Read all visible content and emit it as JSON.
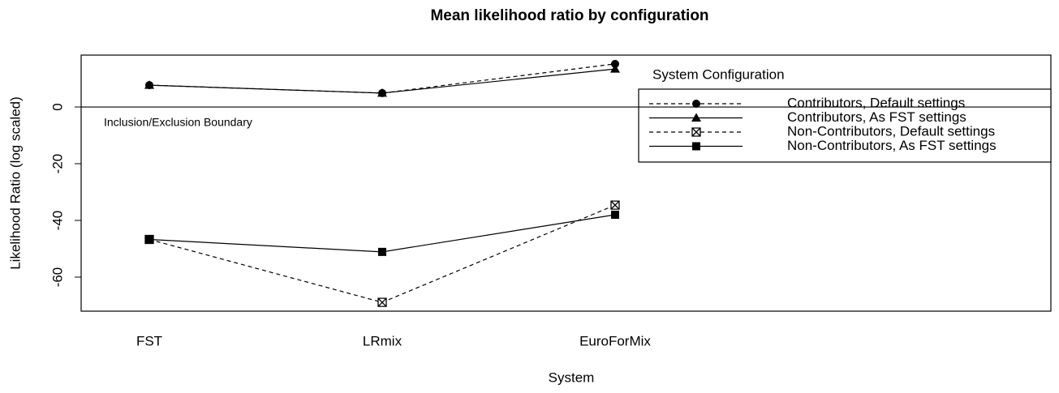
{
  "chart_data": {
    "type": "line",
    "title": "Mean likelihood ratio by configuration",
    "x_label": "System",
    "y_label": "Likelihood Ratio (log scaled)",
    "annotation": "Inclusion/Exclusion Boundary",
    "categories": [
      "FST",
      "LRmix",
      "EuroForMix"
    ],
    "ylim": [
      -72,
      18.3
    ],
    "yticks": [
      0,
      -20,
      -40,
      -60
    ],
    "legend_title": "System Configuration",
    "legend_position": "right",
    "series": [
      {
        "name": "Contributors, Default settings",
        "color": "#000000",
        "linestyle": "dashed",
        "marker": "circle",
        "values": [
          7.7,
          4.9,
          15.2
        ]
      },
      {
        "name": "Contributors, As FST settings",
        "color": "#000000",
        "linestyle": "solid",
        "marker": "triangle",
        "values": [
          7.7,
          4.9,
          13.4
        ]
      },
      {
        "name": "Non-Contributors, Default settings",
        "color": "#000000",
        "linestyle": "dashed",
        "marker": "boxed-x",
        "values": [
          -46.7,
          -68.9,
          -34.6
        ]
      },
      {
        "name": "Non-Contributors, As FST settings",
        "color": "#000000",
        "linestyle": "solid",
        "marker": "square",
        "values": [
          -46.7,
          -51.1,
          -38.0
        ]
      }
    ]
  }
}
